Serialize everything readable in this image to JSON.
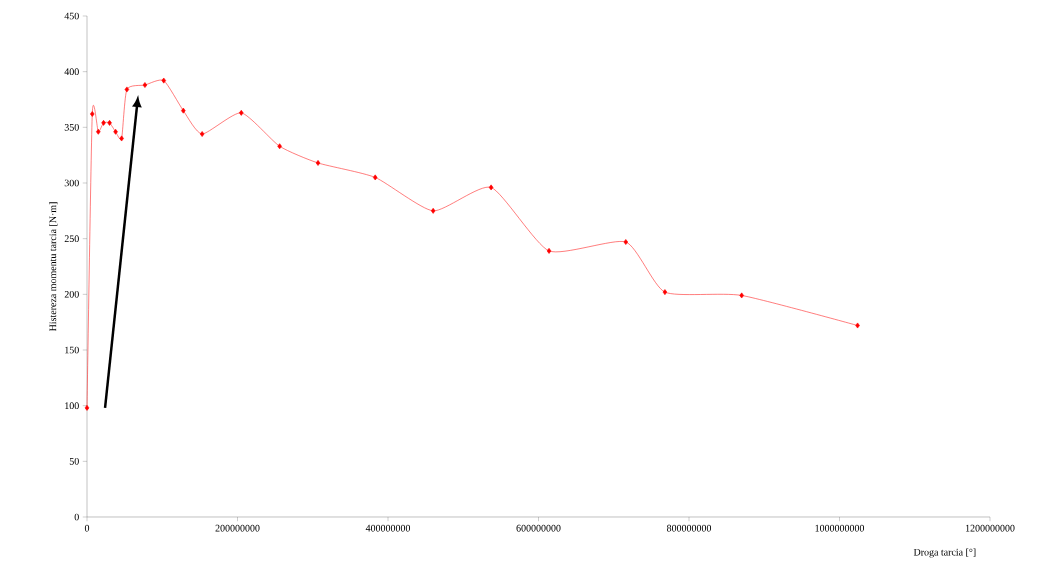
{
  "chart_data": {
    "type": "line",
    "xlabel": "Droga tarcia [°]",
    "ylabel": "Histereza momentu tarcia [N·m]",
    "x": [
      0,
      7000000,
      15000000,
      22000000,
      30000000,
      38000000,
      46000000,
      53000000,
      77000000,
      102000000,
      128000000,
      153000000,
      205000000,
      256000000,
      307000000,
      383000000,
      460000000,
      537000000,
      614000000,
      716000000,
      768000000,
      870000000,
      1024000000
    ],
    "series": [
      {
        "color": "#ff0000",
        "values": [
          98,
          362,
          346,
          354,
          354,
          346,
          340,
          384,
          388,
          392,
          365,
          344,
          363,
          333,
          318,
          305,
          275,
          296,
          239,
          247,
          202,
          199,
          172
        ]
      }
    ],
    "xlim": [
      0,
      1200000000
    ],
    "xticks": [
      0,
      200000000,
      400000000,
      600000000,
      800000000,
      1000000000,
      1200000000
    ],
    "ylim": [
      0,
      450
    ],
    "yticks": [
      0,
      50,
      100,
      150,
      200,
      250,
      300,
      350,
      400,
      450
    ],
    "marker": "diamond",
    "line_style": "solid",
    "grid": false
  }
}
